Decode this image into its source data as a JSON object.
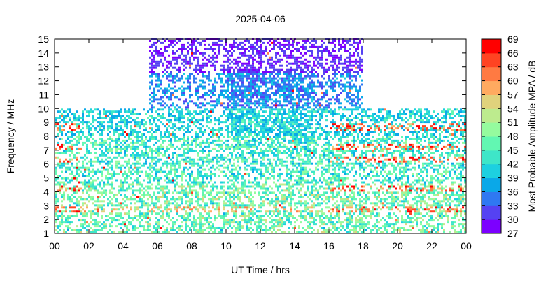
{
  "chart_data": {
    "type": "heatmap",
    "title": "2025-04-06",
    "xlabel": "UT Time / hrs",
    "ylabel": "Frequency / MHz",
    "xlim": [
      0,
      24
    ],
    "ylim": [
      1,
      15
    ],
    "x_ticks": [
      "00",
      "02",
      "04",
      "06",
      "08",
      "10",
      "12",
      "14",
      "16",
      "18",
      "20",
      "22",
      "00"
    ],
    "y_ticks": [
      "1",
      "2",
      "3",
      "4",
      "5",
      "6",
      "7",
      "8",
      "9",
      "10",
      "11",
      "12",
      "13",
      "14",
      "15"
    ],
    "grid": false,
    "colorbar": {
      "label": "Most Probable Amplitude MPA / dB",
      "range": [
        27,
        69
      ],
      "ticks": [
        "27",
        "30",
        "33",
        "36",
        "39",
        "42",
        "45",
        "48",
        "51",
        "54",
        "57",
        "60",
        "63",
        "66",
        "69"
      ],
      "colors": [
        "#7c00ff",
        "#5542f2",
        "#2f78f2",
        "#0aa8e8",
        "#1dd0e0",
        "#3ee6c8",
        "#62f7b2",
        "#95fb9e",
        "#bdeb8e",
        "#e0d27c",
        "#ffaa60",
        "#ff7a42",
        "#ff4422",
        "#ff0000"
      ]
    },
    "coverage_upper_freq_mhz": [
      {
        "from_hr": 0,
        "to_hr": 5.5,
        "max_mhz": 10
      },
      {
        "from_hr": 5.5,
        "to_hr": 18,
        "max_mhz": 15
      },
      {
        "from_hr": 18,
        "to_hr": 24,
        "max_mhz": 10
      }
    ]
  }
}
